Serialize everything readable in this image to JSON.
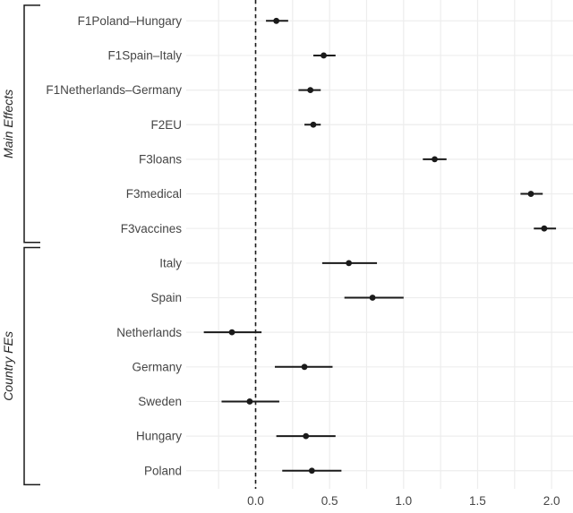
{
  "chart_data": {
    "type": "scatter",
    "variant": "coefficient-forest-plot",
    "title": "",
    "xlabel": "",
    "ylabel": "",
    "grid": "on",
    "legend": null,
    "x_axis": {
      "ticks": [
        0.0,
        0.5,
        1.0,
        1.5,
        2.0
      ],
      "tick_labels": [
        "0.0",
        "0.5",
        "1.0",
        "1.5",
        "2.0"
      ],
      "range": [
        -0.47,
        2.15
      ],
      "gridline_step": 0.25,
      "reference_line": 0
    },
    "groups": [
      {
        "label": "Main Effects",
        "rows": [
          {
            "label": "F1Poland–Hungary",
            "estimate": 0.14,
            "ci_low": 0.07,
            "ci_high": 0.22
          },
          {
            "label": "F1Spain–Italy",
            "estimate": 0.46,
            "ci_low": 0.39,
            "ci_high": 0.54
          },
          {
            "label": "F1Netherlands–Germany",
            "estimate": 0.37,
            "ci_low": 0.29,
            "ci_high": 0.44
          },
          {
            "label": "F2EU",
            "estimate": 0.39,
            "ci_low": 0.33,
            "ci_high": 0.44
          },
          {
            "label": "F3loans",
            "estimate": 1.21,
            "ci_low": 1.13,
            "ci_high": 1.29
          },
          {
            "label": "F3medical",
            "estimate": 1.86,
            "ci_low": 1.79,
            "ci_high": 1.94
          },
          {
            "label": "F3vaccines",
            "estimate": 1.95,
            "ci_low": 1.88,
            "ci_high": 2.03
          }
        ]
      },
      {
        "label": "Country FEs",
        "rows": [
          {
            "label": "Italy",
            "estimate": 0.63,
            "ci_low": 0.45,
            "ci_high": 0.82
          },
          {
            "label": "Spain",
            "estimate": 0.79,
            "ci_low": 0.6,
            "ci_high": 1.0
          },
          {
            "label": "Netherlands",
            "estimate": -0.16,
            "ci_low": -0.35,
            "ci_high": 0.04
          },
          {
            "label": "Germany",
            "estimate": 0.33,
            "ci_low": 0.13,
            "ci_high": 0.52
          },
          {
            "label": "Sweden",
            "estimate": -0.04,
            "ci_low": -0.23,
            "ci_high": 0.16
          },
          {
            "label": "Hungary",
            "estimate": 0.34,
            "ci_low": 0.14,
            "ci_high": 0.54
          },
          {
            "label": "Poland",
            "estimate": 0.38,
            "ci_low": 0.18,
            "ci_high": 0.58
          }
        ]
      }
    ],
    "colors": {
      "point": "#1a1a1a",
      "error_bar": "#1a1a1a",
      "reference_line": "#1a1a1a",
      "gridline": "#ededed",
      "axis_text": "#454545",
      "group_label": "#262626",
      "bracket": "#1a1a1a",
      "background": "#ffffff"
    }
  }
}
